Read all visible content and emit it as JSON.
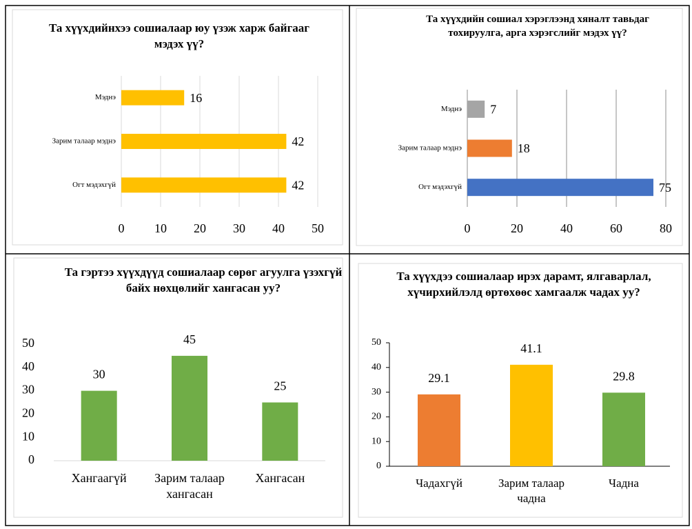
{
  "chart_data": [
    {
      "type": "bar",
      "orientation": "horizontal",
      "title": "Та хүүхдийнхээ сошиалаар юу үзэж харж байгааг мэдэх үү?",
      "categories": [
        "Мэднэ",
        "Зарим талаар мэднэ",
        "Огт мэдэхгүй"
      ],
      "values": [
        16,
        42,
        42
      ],
      "colors": [
        "#ffc000",
        "#ffc000",
        "#ffc000"
      ],
      "xlim": [
        0,
        50
      ],
      "xticks": [
        0,
        10,
        20,
        30,
        40,
        50
      ],
      "grid": true
    },
    {
      "type": "bar",
      "orientation": "horizontal",
      "title": "Та хүүхдийн сошиал хэрэглээнд хяналт тавьдаг тохируулга, арга хэрэгслийг мэдэх үү?",
      "categories": [
        "Мэднэ",
        "Зарим талаар мэднэ",
        "Огт мэдэхгүй"
      ],
      "values": [
        7,
        18,
        75
      ],
      "colors": [
        "#a5a5a5",
        "#ed7d31",
        "#4472c4"
      ],
      "xlim": [
        0,
        80
      ],
      "xticks": [
        0,
        20,
        40,
        60,
        80
      ],
      "grid": true
    },
    {
      "type": "bar",
      "orientation": "vertical",
      "title": "Та гэртээ хүүхдүүд сошиалаар сөрөг агуулга үзэхгүй байх нөхцөлийг хангасан уу?",
      "categories": [
        "Хангаагүй",
        "Зарим талаар хангасан",
        "Хангасан"
      ],
      "values": [
        30,
        45,
        25
      ],
      "colors": [
        "#70ad47",
        "#70ad47",
        "#70ad47"
      ],
      "ylim": [
        0,
        50
      ],
      "yticks": [
        0,
        10,
        20,
        30,
        40,
        50
      ],
      "grid": false
    },
    {
      "type": "bar",
      "orientation": "vertical",
      "title": "Та хүүхдээ сошиалаар ирэх дарамт, ялгаварлал, хүчирхийлэлд өртөхөөс хамгаалж чадах уу?",
      "categories": [
        "Чадахгүй",
        "Зарим талаар чадна",
        "Чадна"
      ],
      "values": [
        29.1,
        41.1,
        29.8
      ],
      "colors": [
        "#ed7d31",
        "#ffc000",
        "#70ad47"
      ],
      "ylim": [
        0,
        50
      ],
      "yticks": [
        0,
        10,
        20,
        30,
        40,
        50
      ],
      "grid": false
    }
  ]
}
